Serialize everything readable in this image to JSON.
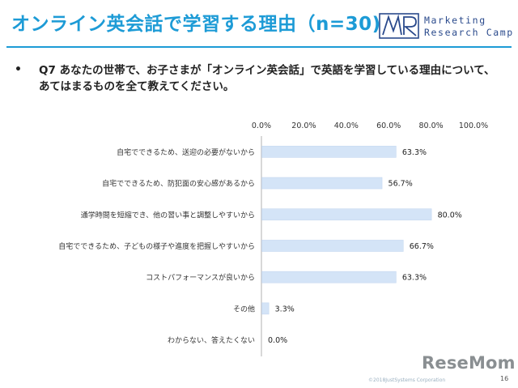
{
  "header": {
    "title": "オンライン英会話で学習する理由（n=30)",
    "logo": {
      "line1": "Marketing",
      "line2": "Research Camp"
    }
  },
  "question": "Q7 あなたの世帯で、お子さまが「オンライン英会話」で英語を学習している理由について、あてはまるものを全て教えてください。",
  "chart_data": {
    "type": "bar",
    "orientation": "horizontal",
    "title": "",
    "xlabel": "",
    "ylabel": "",
    "x_ticks": [
      "0.0%",
      "20.0%",
      "40.0%",
      "60.0%",
      "80.0%",
      "100.0%"
    ],
    "xlim": [
      0,
      100
    ],
    "x_axis_position": "top",
    "grid": false,
    "categories": [
      "自宅でできるため、送迎の必要がないから",
      "自宅でできるため、防犯面の安心感があるから",
      "通学時間を短縮でき、他の習い事と調整しやすいから",
      "自宅でできるため、子どもの様子や進度を把握しやすいから",
      "コストパフォーマンスが良いから",
      "その他",
      "わからない、答えたくない"
    ],
    "values": [
      63.3,
      56.7,
      80.0,
      66.7,
      63.3,
      3.3,
      0.0
    ],
    "value_labels": [
      "63.3%",
      "56.7%",
      "80.0%",
      "66.7%",
      "63.3%",
      "3.3%",
      "0.0%"
    ],
    "bar_color": "#d4e4f7",
    "bar_border_color": "#c5d8f0"
  },
  "footer": {
    "copyright": "©2018JustSystems Corporation",
    "watermark": "ReseMom",
    "page_number": "16"
  },
  "colors": {
    "accent": "#1d9bd6",
    "text": "#222222"
  }
}
